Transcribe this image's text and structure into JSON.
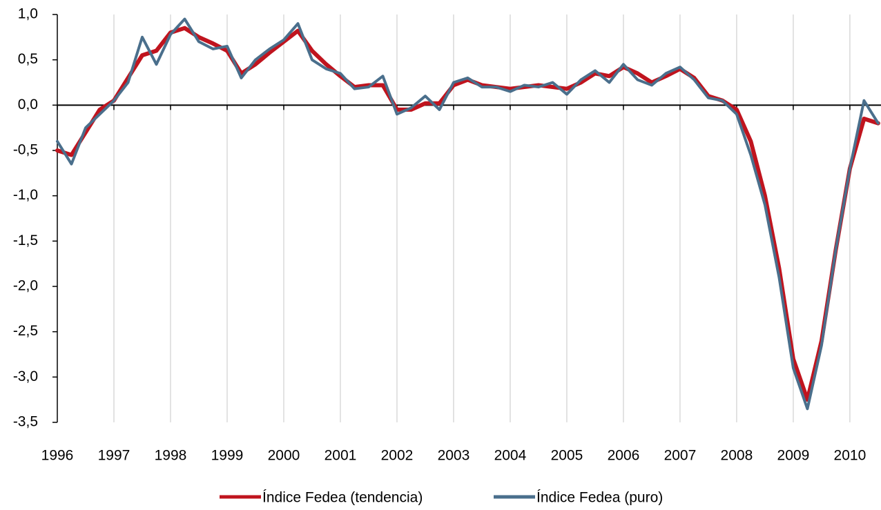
{
  "chart_data": {
    "type": "line",
    "x": [
      1996,
      1996.25,
      1996.5,
      1996.75,
      1997,
      1997.25,
      1997.5,
      1997.75,
      1998,
      1998.25,
      1998.5,
      1998.75,
      1999,
      1999.25,
      1999.5,
      1999.75,
      2000,
      2000.25,
      2000.5,
      2000.75,
      2001,
      2001.25,
      2001.5,
      2001.75,
      2002,
      2002.25,
      2002.5,
      2002.75,
      2003,
      2003.25,
      2003.5,
      2003.75,
      2004,
      2004.25,
      2004.5,
      2004.75,
      2005,
      2005.25,
      2005.5,
      2005.75,
      2006,
      2006.25,
      2006.5,
      2006.75,
      2007,
      2007.25,
      2007.5,
      2007.75,
      2008,
      2008.25,
      2008.5,
      2008.75,
      2009,
      2009.25,
      2009.5,
      2009.75,
      2010,
      2010.25,
      2010.5
    ],
    "series": [
      {
        "name": "Índice Fedea (tendencia)",
        "color": "#c0141e",
        "values": [
          -0.5,
          -0.55,
          -0.3,
          -0.05,
          0.05,
          0.3,
          0.55,
          0.6,
          0.8,
          0.85,
          0.75,
          0.68,
          0.6,
          0.35,
          0.45,
          0.58,
          0.7,
          0.82,
          0.6,
          0.45,
          0.32,
          0.2,
          0.22,
          0.22,
          -0.05,
          -0.05,
          0.02,
          0.02,
          0.22,
          0.28,
          0.22,
          0.2,
          0.18,
          0.2,
          0.22,
          0.2,
          0.18,
          0.25,
          0.35,
          0.32,
          0.42,
          0.35,
          0.25,
          0.32,
          0.4,
          0.3,
          0.1,
          0.05,
          -0.05,
          -0.4,
          -1.0,
          -1.8,
          -2.8,
          -3.25,
          -2.6,
          -1.6,
          -0.7,
          -0.15,
          -0.2
        ]
      },
      {
        "name": "Índice Fedea (puro)",
        "color": "#4a6f8c",
        "values": [
          -0.4,
          -0.65,
          -0.25,
          -0.1,
          0.05,
          0.25,
          0.75,
          0.45,
          0.78,
          0.95,
          0.7,
          0.62,
          0.65,
          0.3,
          0.5,
          0.62,
          0.72,
          0.9,
          0.5,
          0.4,
          0.35,
          0.18,
          0.2,
          0.32,
          -0.1,
          -0.03,
          0.1,
          -0.05,
          0.25,
          0.3,
          0.2,
          0.2,
          0.15,
          0.22,
          0.2,
          0.25,
          0.12,
          0.28,
          0.38,
          0.25,
          0.45,
          0.28,
          0.22,
          0.35,
          0.42,
          0.28,
          0.08,
          0.05,
          -0.1,
          -0.55,
          -1.1,
          -1.9,
          -2.9,
          -3.35,
          -2.65,
          -1.6,
          -0.7,
          0.05,
          -0.2
        ]
      }
    ],
    "xlim": [
      1996,
      2010.55
    ],
    "xticks": [
      1996,
      1997,
      1998,
      1999,
      2000,
      2001,
      2002,
      2003,
      2004,
      2005,
      2006,
      2007,
      2008,
      2009,
      2010
    ],
    "ylim": [
      -3.5,
      1.0
    ],
    "yticks": [
      {
        "value": 1.0,
        "label": "1,0"
      },
      {
        "value": 0.5,
        "label": "0,5"
      },
      {
        "value": 0,
        "label": "0,0"
      },
      {
        "value": -0.5,
        "label": "-0,5"
      },
      {
        "value": -1.0,
        "label": "-1,0"
      },
      {
        "value": -1.5,
        "label": "-1,5"
      },
      {
        "value": -2.0,
        "label": "-2,0"
      },
      {
        "value": -2.5,
        "label": "-2,5"
      },
      {
        "value": -3.0,
        "label": "-3,0"
      },
      {
        "value": -3.5,
        "label": "-3,5"
      }
    ],
    "grid": true,
    "legend": "bottom"
  }
}
